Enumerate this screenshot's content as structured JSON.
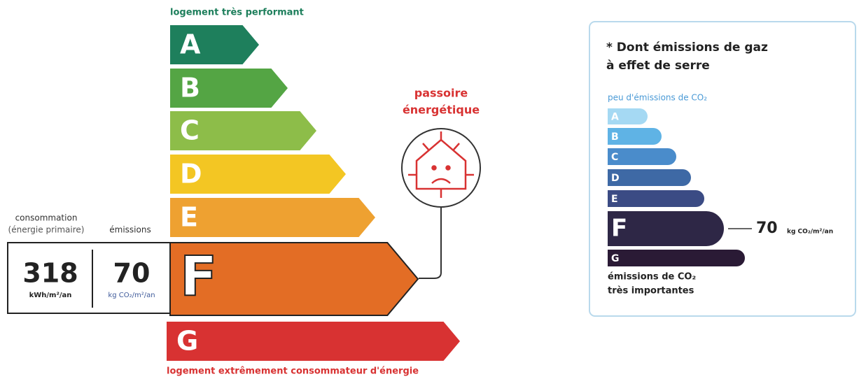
{
  "energy_label": {
    "top_label": "logement très performant",
    "bottom_label": "logement extrêmement consommateur d'énergie",
    "current_class": "F",
    "classes": [
      {
        "letter": "A",
        "color": "#1e7f5c"
      },
      {
        "letter": "B",
        "color": "#54a544"
      },
      {
        "letter": "C",
        "color": "#8dbd49"
      },
      {
        "letter": "D",
        "color": "#f3c623"
      },
      {
        "letter": "E",
        "color": "#eea131"
      },
      {
        "letter": "F",
        "color": "#e36d25"
      },
      {
        "letter": "G",
        "color": "#d83232"
      }
    ],
    "consumption": {
      "label_1": "consommation",
      "label_2": "(énergie primaire)",
      "value": "318",
      "unit": "kWh/m²/an"
    },
    "emissions": {
      "label": "émissions",
      "value": "70",
      "unit": "kg CO₂/m²/an"
    },
    "warning": {
      "line_1": "passoire",
      "line_2": "énergétique"
    }
  },
  "ges_label": {
    "title_1": "* Dont émissions de gaz",
    "title_2": "à effet de serre",
    "top_label": "peu d'émissions de CO₂",
    "bottom_label_1": "émissions de CO₂",
    "bottom_label_2": "très importantes",
    "current_class": "F",
    "value": "70",
    "unit": "kg CO₂/m²/an",
    "classes": [
      {
        "letter": "A",
        "color": "#a5d9f3"
      },
      {
        "letter": "B",
        "color": "#5fb3e5"
      },
      {
        "letter": "C",
        "color": "#4a8ccb"
      },
      {
        "letter": "D",
        "color": "#3e69a5"
      },
      {
        "letter": "E",
        "color": "#3b4b84"
      },
      {
        "letter": "F",
        "color": "#2e2746"
      },
      {
        "letter": "G",
        "color": "#2a1a35"
      }
    ]
  }
}
